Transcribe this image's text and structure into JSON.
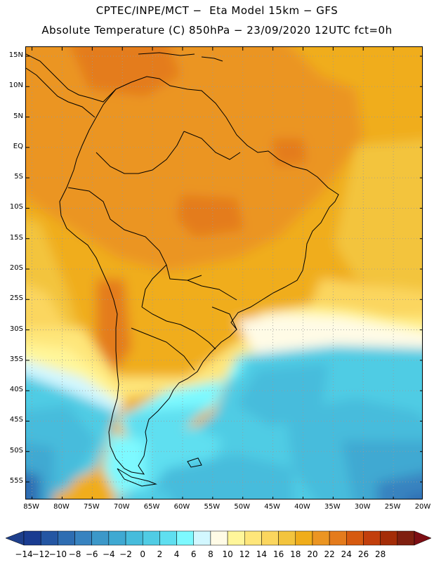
{
  "title_line1": "CPTEC/INPE/MCT −  Eta Model 15km − GFS",
  "title_line2": "Absolute Temperature (C) 850hPa − 23/09/2020 12UTC fct=0h",
  "lat_ticks": [
    "15N",
    "10N",
    "5N",
    "EQ",
    "5S",
    "10S",
    "15S",
    "20S",
    "25S",
    "30S",
    "35S",
    "40S",
    "45S",
    "50S",
    "55S"
  ],
  "lat_values": [
    15,
    10,
    5,
    0,
    -5,
    -10,
    -15,
    -20,
    -25,
    -30,
    -35,
    -40,
    -45,
    -50,
    -55
  ],
  "lon_ticks": [
    "85W",
    "80W",
    "75W",
    "70W",
    "65W",
    "60W",
    "55W",
    "50W",
    "45W",
    "40W",
    "35W",
    "30W",
    "25W",
    "20W"
  ],
  "lon_values": [
    -85,
    -80,
    -75,
    -70,
    -65,
    -60,
    -55,
    -50,
    -45,
    -40,
    -35,
    -30,
    -25,
    -20
  ],
  "extent": {
    "lon_min": -86,
    "lon_max": -20,
    "lat_max": 16.5,
    "lat_min": -58
  },
  "colorbar": {
    "labels": [
      "−14",
      "−12",
      "−10",
      "−8",
      "−6",
      "−4",
      "−2",
      "0",
      "2",
      "4",
      "6",
      "8",
      "10",
      "12",
      "14",
      "16",
      "18",
      "20",
      "22",
      "24",
      "26",
      "28"
    ],
    "colors": [
      "#1a3c91",
      "#2456a3",
      "#2e6db2",
      "#3883c0",
      "#3c98c9",
      "#3fa9d2",
      "#46bcdc",
      "#50cce4",
      "#5fdff0",
      "#7df9ff",
      "#d2f7ff",
      "#fffbe6",
      "#fff69a",
      "#fee67a",
      "#fbd65e",
      "#f3c43d",
      "#f0ad1a",
      "#eb9522",
      "#e47b1c",
      "#d65a10",
      "#c23f0c",
      "#a42c07",
      "#7f1f10"
    ],
    "under_color": "#1e3f8c",
    "over_color": "#7d0e14"
  },
  "colors": {
    "frame": "#000000",
    "coast": "#000000",
    "grid": "#999999"
  }
}
